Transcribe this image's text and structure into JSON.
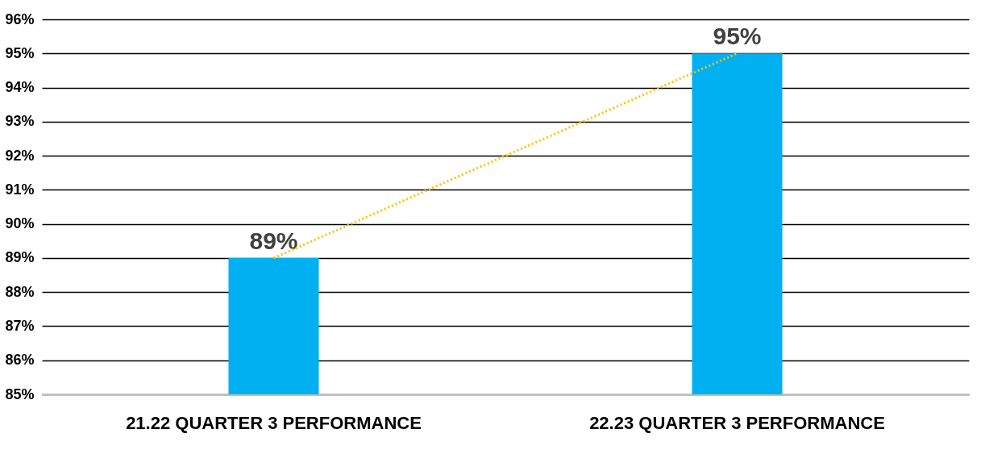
{
  "chart_data": {
    "type": "bar",
    "categories": [
      "21.22 QUARTER 3 PERFORMANCE",
      "22.23 QUARTER 3 PERFORMANCE"
    ],
    "series": [
      {
        "color": "#00b0f0",
        "values": [
          89,
          95
        ],
        "value_labels": [
          "89%",
          "95%"
        ]
      },
      {
        "type": "line",
        "color": "#ffc000",
        "values": [
          89,
          95
        ],
        "line_style": "dotted"
      }
    ],
    "ylim": [
      85,
      96
    ],
    "yticks": [
      {
        "value": 85,
        "label": "85%"
      },
      {
        "value": 86,
        "label": "86%"
      },
      {
        "value": 87,
        "label": "87%"
      },
      {
        "value": 88,
        "label": "88%"
      },
      {
        "value": 89,
        "label": "89%"
      },
      {
        "value": 90,
        "label": "90%"
      },
      {
        "value": 91,
        "label": "91%"
      },
      {
        "value": 92,
        "label": "92%"
      },
      {
        "value": 93,
        "label": "93%"
      },
      {
        "value": 94,
        "label": "94%"
      },
      {
        "value": 95,
        "label": "95%"
      },
      {
        "value": 96,
        "label": "96%"
      }
    ],
    "grid": "y"
  }
}
